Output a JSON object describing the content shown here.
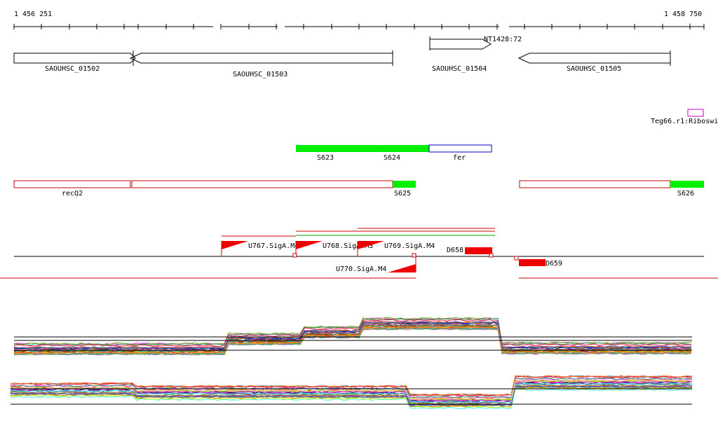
{
  "ruler": {
    "start_label": "1 456 251",
    "end_label": "1 458 750"
  },
  "genes": [
    {
      "label": "SAOUHSC_01502",
      "strand": "+"
    },
    {
      "label": "SAOUHSC_01503",
      "strand": "-"
    },
    {
      "label": "SAOUHSC_01504",
      "strand": "+"
    },
    {
      "label": "SAOUHSC_01505",
      "strand": "-"
    }
  ],
  "gene_extra_label": "NT1428:72",
  "riboswitch": {
    "label": "Teg66.r1:Riboswi"
  },
  "segments_row1": [
    {
      "label": "S623"
    },
    {
      "label": "S624"
    },
    {
      "label": "fer"
    }
  ],
  "segments_row2": [
    {
      "label": "recQ2"
    },
    {
      "label": "S625"
    },
    {
      "label": "S626"
    }
  ],
  "promoters": [
    {
      "label": "U767.SigA.M4"
    },
    {
      "label": "U768.SigA.M3"
    },
    {
      "label": "U769.SigA.M4"
    },
    {
      "label": "D658"
    },
    {
      "label": "U770.SigA.M4"
    },
    {
      "label": "D659"
    }
  ],
  "colors": {
    "gene_outline": "#000000",
    "segment_green": "#00ee00",
    "segment_red_outline": "#cc0000",
    "segment_blue_outline": "#0000cc",
    "riboswitch_outline": "#cc00cc",
    "promoter_red": "#ee0000",
    "green_line": "#00aa00"
  }
}
